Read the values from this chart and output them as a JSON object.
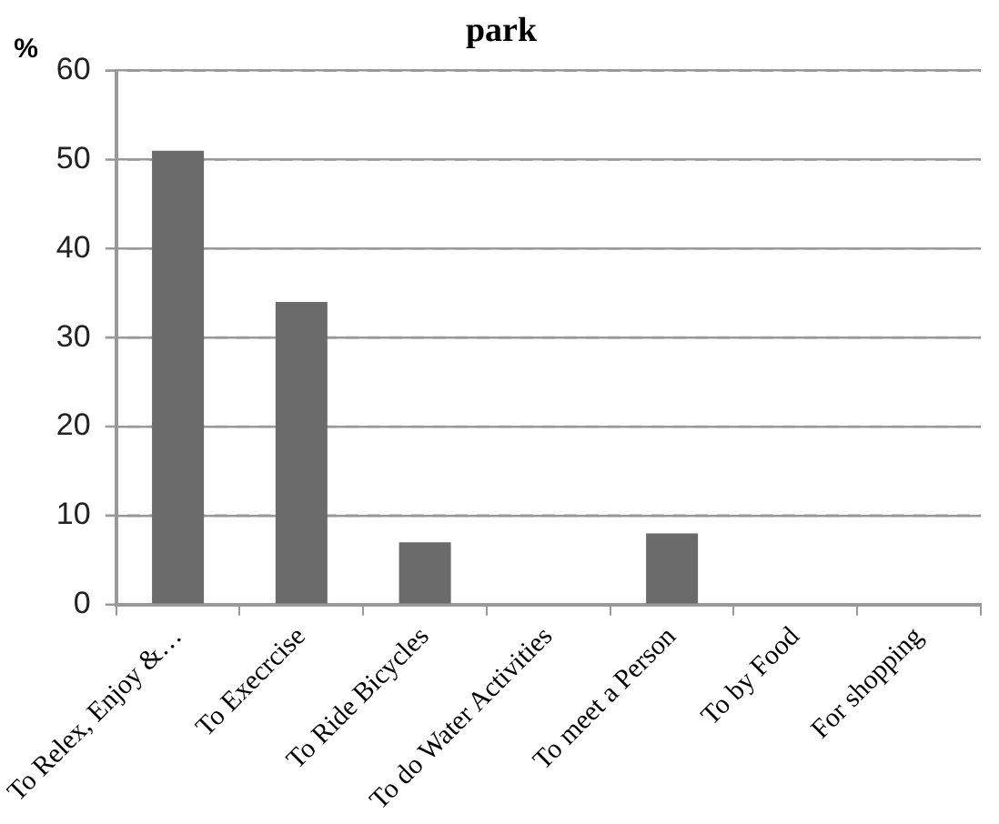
{
  "chart_data": {
    "type": "bar",
    "title": "park",
    "ylabel": "%",
    "categories": [
      "To Relex, Enjoy &…",
      "To Execrcise",
      "To Ride Bicycles",
      "To do Water Activities",
      "To meet a Person",
      "To by Food",
      "For shopping"
    ],
    "values": [
      51,
      34,
      7,
      0,
      8,
      0,
      0
    ],
    "color": "#6b6b6b",
    "ylim": [
      0,
      60
    ],
    "yticks": [
      0,
      10,
      20,
      30,
      40,
      50,
      60
    ],
    "grid": "y",
    "legend": false
  }
}
